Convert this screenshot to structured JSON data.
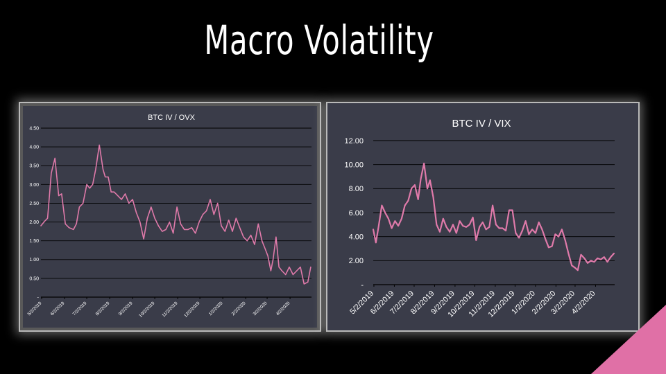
{
  "slide": {
    "title": "Macro Volatility"
  },
  "colors": {
    "background": "#000000",
    "line": "#e07aaa",
    "left_panel": "#595959",
    "left_plot": "#3a3c49",
    "right_plot": "#3a3c49",
    "accent": "#e070a6"
  },
  "chart_data": [
    {
      "type": "line",
      "title": "BTC IV / OVX",
      "ylim": [
        0,
        4.5
      ],
      "yticks": [
        "4.50",
        "4.00",
        "3.50",
        "3.00",
        "2.50",
        "2.00",
        "1.50",
        "1.00",
        "0.50",
        "-"
      ],
      "xticks": [
        "5/2/2019",
        "6/2/2019",
        "7/2/2019",
        "8/2/2019",
        "9/2/2019",
        "10/2/2019",
        "11/2/2019",
        "12/2/2019",
        "1/2/2020",
        "2/2/2020",
        "3/2/2020",
        "4/2/2020"
      ],
      "grid": true,
      "series": [
        {
          "x": [
            "2019-05-01",
            "2019-05-05",
            "2019-05-10",
            "2019-05-15",
            "2019-05-20",
            "2019-05-25",
            "2019-05-29",
            "2019-06-03",
            "2019-06-08",
            "2019-06-14",
            "2019-06-18",
            "2019-06-22",
            "2019-06-27",
            "2019-07-02",
            "2019-07-06",
            "2019-07-10",
            "2019-07-14",
            "2019-07-19",
            "2019-07-24",
            "2019-07-27",
            "2019-07-31",
            "2019-08-04",
            "2019-08-08",
            "2019-08-13",
            "2019-08-18",
            "2019-08-23",
            "2019-08-28",
            "2019-09-02",
            "2019-09-07",
            "2019-09-12",
            "2019-09-17",
            "2019-09-22",
            "2019-09-27",
            "2019-10-02",
            "2019-10-07",
            "2019-10-12",
            "2019-10-17",
            "2019-10-22",
            "2019-10-27",
            "2019-11-01",
            "2019-11-06",
            "2019-11-11",
            "2019-11-16",
            "2019-11-21",
            "2019-11-26",
            "2019-12-01",
            "2019-12-06",
            "2019-12-11",
            "2019-12-16",
            "2019-12-21",
            "2019-12-26",
            "2019-12-31",
            "2020-01-05",
            "2020-01-10",
            "2020-01-15",
            "2020-01-20",
            "2020-01-25",
            "2020-01-30",
            "2020-02-04",
            "2020-02-09",
            "2020-02-14",
            "2020-02-19",
            "2020-02-24",
            "2020-02-28",
            "2020-03-03",
            "2020-03-07",
            "2020-03-10",
            "2020-03-14",
            "2020-03-18",
            "2020-03-22",
            "2020-03-27",
            "2020-04-01",
            "2020-04-06",
            "2020-04-11",
            "2020-04-16",
            "2020-04-21",
            "2020-04-26",
            "2020-04-30"
          ],
          "y": [
            1.9,
            2.0,
            2.1,
            3.3,
            3.7,
            2.7,
            2.75,
            1.95,
            1.85,
            1.8,
            1.95,
            2.4,
            2.5,
            3.0,
            2.9,
            3.0,
            3.4,
            4.05,
            3.4,
            3.2,
            3.2,
            2.8,
            2.8,
            2.7,
            2.6,
            2.75,
            2.5,
            2.6,
            2.25,
            2.0,
            1.55,
            2.1,
            2.4,
            2.1,
            1.9,
            1.75,
            1.8,
            2.0,
            1.7,
            2.4,
            1.95,
            1.8,
            1.8,
            1.85,
            1.7,
            2.0,
            2.2,
            2.3,
            2.6,
            2.2,
            2.5,
            1.9,
            1.75,
            2.05,
            1.75,
            2.1,
            1.85,
            1.6,
            1.5,
            1.65,
            1.4,
            1.95,
            1.5,
            1.3,
            1.1,
            0.7,
            1.0,
            1.6,
            0.8,
            0.7,
            0.6,
            0.8,
            0.6,
            0.7,
            0.8,
            0.35,
            0.4,
            0.8
          ]
        }
      ]
    },
    {
      "type": "line",
      "title": "BTC IV / VIX",
      "ylim": [
        0,
        12
      ],
      "yticks": [
        "12.00",
        "10.00",
        "8.00",
        "6.00",
        "4.00",
        "2.00",
        "-"
      ],
      "xticks": [
        "5/2/2019",
        "6/2/2019",
        "7/2/2019",
        "8/2/2019",
        "9/2/2019",
        "10/2/2019",
        "11/2/2019",
        "12/2/2019",
        "1/2/2020",
        "2/2/2020",
        "3/2/2020",
        "4/2/2020"
      ],
      "grid": true,
      "series": [
        {
          "x": [
            "2019-05-01",
            "2019-05-05",
            "2019-05-09",
            "2019-05-14",
            "2019-05-19",
            "2019-05-24",
            "2019-05-29",
            "2019-06-03",
            "2019-06-08",
            "2019-06-13",
            "2019-06-18",
            "2019-06-23",
            "2019-06-28",
            "2019-07-03",
            "2019-07-08",
            "2019-07-12",
            "2019-07-17",
            "2019-07-22",
            "2019-07-26",
            "2019-07-31",
            "2019-08-05",
            "2019-08-10",
            "2019-08-15",
            "2019-08-20",
            "2019-08-25",
            "2019-08-30",
            "2019-09-04",
            "2019-09-09",
            "2019-09-14",
            "2019-09-19",
            "2019-09-24",
            "2019-09-29",
            "2019-10-04",
            "2019-10-09",
            "2019-10-14",
            "2019-10-19",
            "2019-10-24",
            "2019-10-29",
            "2019-11-03",
            "2019-11-08",
            "2019-11-13",
            "2019-11-18",
            "2019-11-23",
            "2019-11-28",
            "2019-12-03",
            "2019-12-08",
            "2019-12-13",
            "2019-12-18",
            "2019-12-23",
            "2019-12-28",
            "2020-01-02",
            "2020-01-07",
            "2020-01-12",
            "2020-01-17",
            "2020-01-22",
            "2020-01-27",
            "2020-02-01",
            "2020-02-06",
            "2020-02-11",
            "2020-02-16",
            "2020-02-21",
            "2020-02-26",
            "2020-03-02",
            "2020-03-06",
            "2020-03-11",
            "2020-03-16",
            "2020-03-21",
            "2020-03-26",
            "2020-03-31",
            "2020-04-05",
            "2020-04-10",
            "2020-04-15",
            "2020-04-20",
            "2020-04-25",
            "2020-04-30"
          ],
          "y": [
            4.6,
            3.5,
            4.8,
            6.6,
            6.0,
            5.5,
            4.7,
            5.3,
            4.9,
            5.5,
            6.6,
            7.0,
            8.0,
            8.3,
            7.1,
            8.8,
            10.1,
            8.0,
            8.7,
            7.3,
            5.0,
            4.4,
            5.5,
            4.8,
            4.4,
            5.0,
            4.3,
            5.3,
            4.9,
            4.8,
            5.0,
            5.6,
            3.7,
            4.8,
            5.2,
            4.6,
            4.8,
            6.6,
            5.0,
            4.7,
            4.7,
            4.5,
            6.2,
            6.2,
            4.3,
            3.9,
            4.5,
            5.3,
            4.2,
            4.6,
            4.3,
            5.2,
            4.6,
            3.8,
            3.1,
            3.2,
            4.2,
            4.0,
            4.6,
            3.7,
            2.6,
            1.6,
            1.4,
            1.2,
            2.5,
            2.2,
            1.8,
            2.0,
            1.9,
            2.2,
            2.1,
            2.3,
            1.9,
            2.3,
            2.6
          ]
        }
      ]
    }
  ]
}
